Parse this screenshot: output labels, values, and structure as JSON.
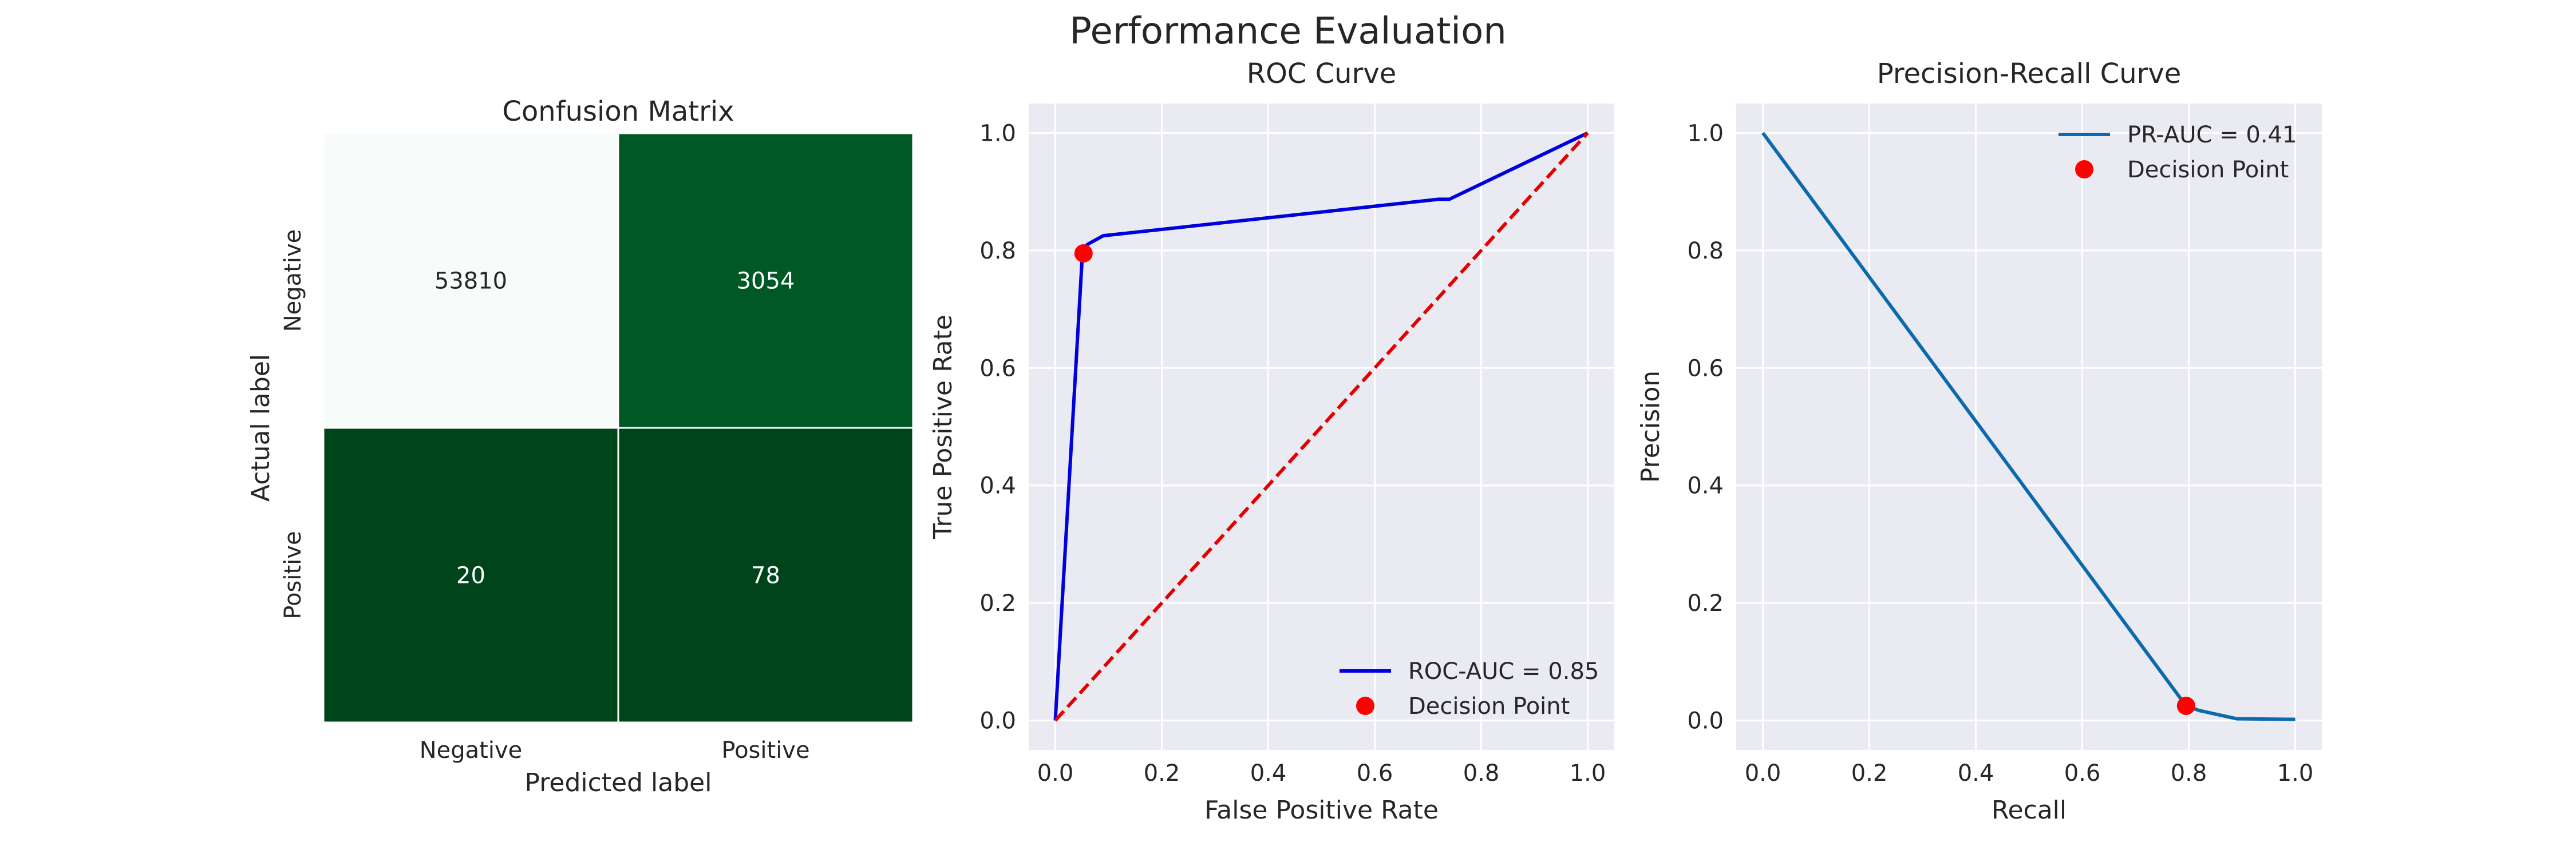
{
  "title": "Performance Evaluation",
  "chart_data": [
    {
      "type": "heatmap",
      "title": "Confusion Matrix",
      "xlabel": "Predicted label",
      "ylabel": "Actual label",
      "x_categories": [
        "Negative",
        "Positive"
      ],
      "y_categories": [
        "Negative",
        "Positive"
      ],
      "values": [
        [
          53810,
          3054
        ],
        [
          20,
          78
        ]
      ],
      "colormap": "Greens",
      "colors": {
        "cell_00": "#f7fcfa",
        "cell_01": "#005924",
        "cell_10": "#00441b",
        "cell_11": "#00441b",
        "text_light_bg": "#262626",
        "text_dark_bg": "#ffffff"
      }
    },
    {
      "type": "line",
      "title": "ROC Curve",
      "xlabel": "False Positive Rate",
      "ylabel": "True Positive Rate",
      "xlim": [
        -0.05,
        1.05
      ],
      "ylim": [
        -0.05,
        1.05
      ],
      "xticks": [
        "0.0",
        "0.2",
        "0.4",
        "0.6",
        "0.8",
        "1.0"
      ],
      "yticks": [
        "0.0",
        "0.2",
        "0.4",
        "0.6",
        "0.8",
        "1.0"
      ],
      "grid": true,
      "legend_position": "bottom-right",
      "series": [
        {
          "name": "ROC-AUC = 0.85",
          "color": "#0000dd",
          "style": "solid",
          "x": [
            0.0,
            0.05,
            0.053,
            0.06,
            0.09,
            0.72,
            0.74,
            1.0
          ],
          "y": [
            0.0,
            0.78,
            0.795,
            0.81,
            0.825,
            0.887,
            0.887,
            1.0
          ]
        },
        {
          "name": "",
          "color": "#e50000",
          "style": "dashed",
          "x": [
            0.0,
            1.0
          ],
          "y": [
            0.0,
            1.0
          ]
        }
      ],
      "points": [
        {
          "name": "Decision Point",
          "x": 0.053,
          "y": 0.795,
          "color": "#ff0000"
        }
      ]
    },
    {
      "type": "line",
      "title": "Precision-Recall Curve",
      "xlabel": "Recall",
      "ylabel": "Precision",
      "xlim": [
        -0.05,
        1.05
      ],
      "ylim": [
        -0.05,
        1.05
      ],
      "xticks": [
        "0.0",
        "0.2",
        "0.4",
        "0.6",
        "0.8",
        "1.0"
      ],
      "yticks": [
        "0.0",
        "0.2",
        "0.4",
        "0.6",
        "0.8",
        "1.0"
      ],
      "grid": true,
      "legend_position": "top-right",
      "series": [
        {
          "name": "PR-AUC = 0.41",
          "color": "#0a6aad",
          "style": "solid",
          "x": [
            0.0,
            0.795,
            0.82,
            0.89,
            1.0
          ],
          "y": [
            1.0,
            0.025,
            0.017,
            0.003,
            0.002
          ]
        }
      ],
      "points": [
        {
          "name": "Decision Point",
          "x": 0.795,
          "y": 0.025,
          "color": "#ff0000"
        }
      ]
    }
  ]
}
